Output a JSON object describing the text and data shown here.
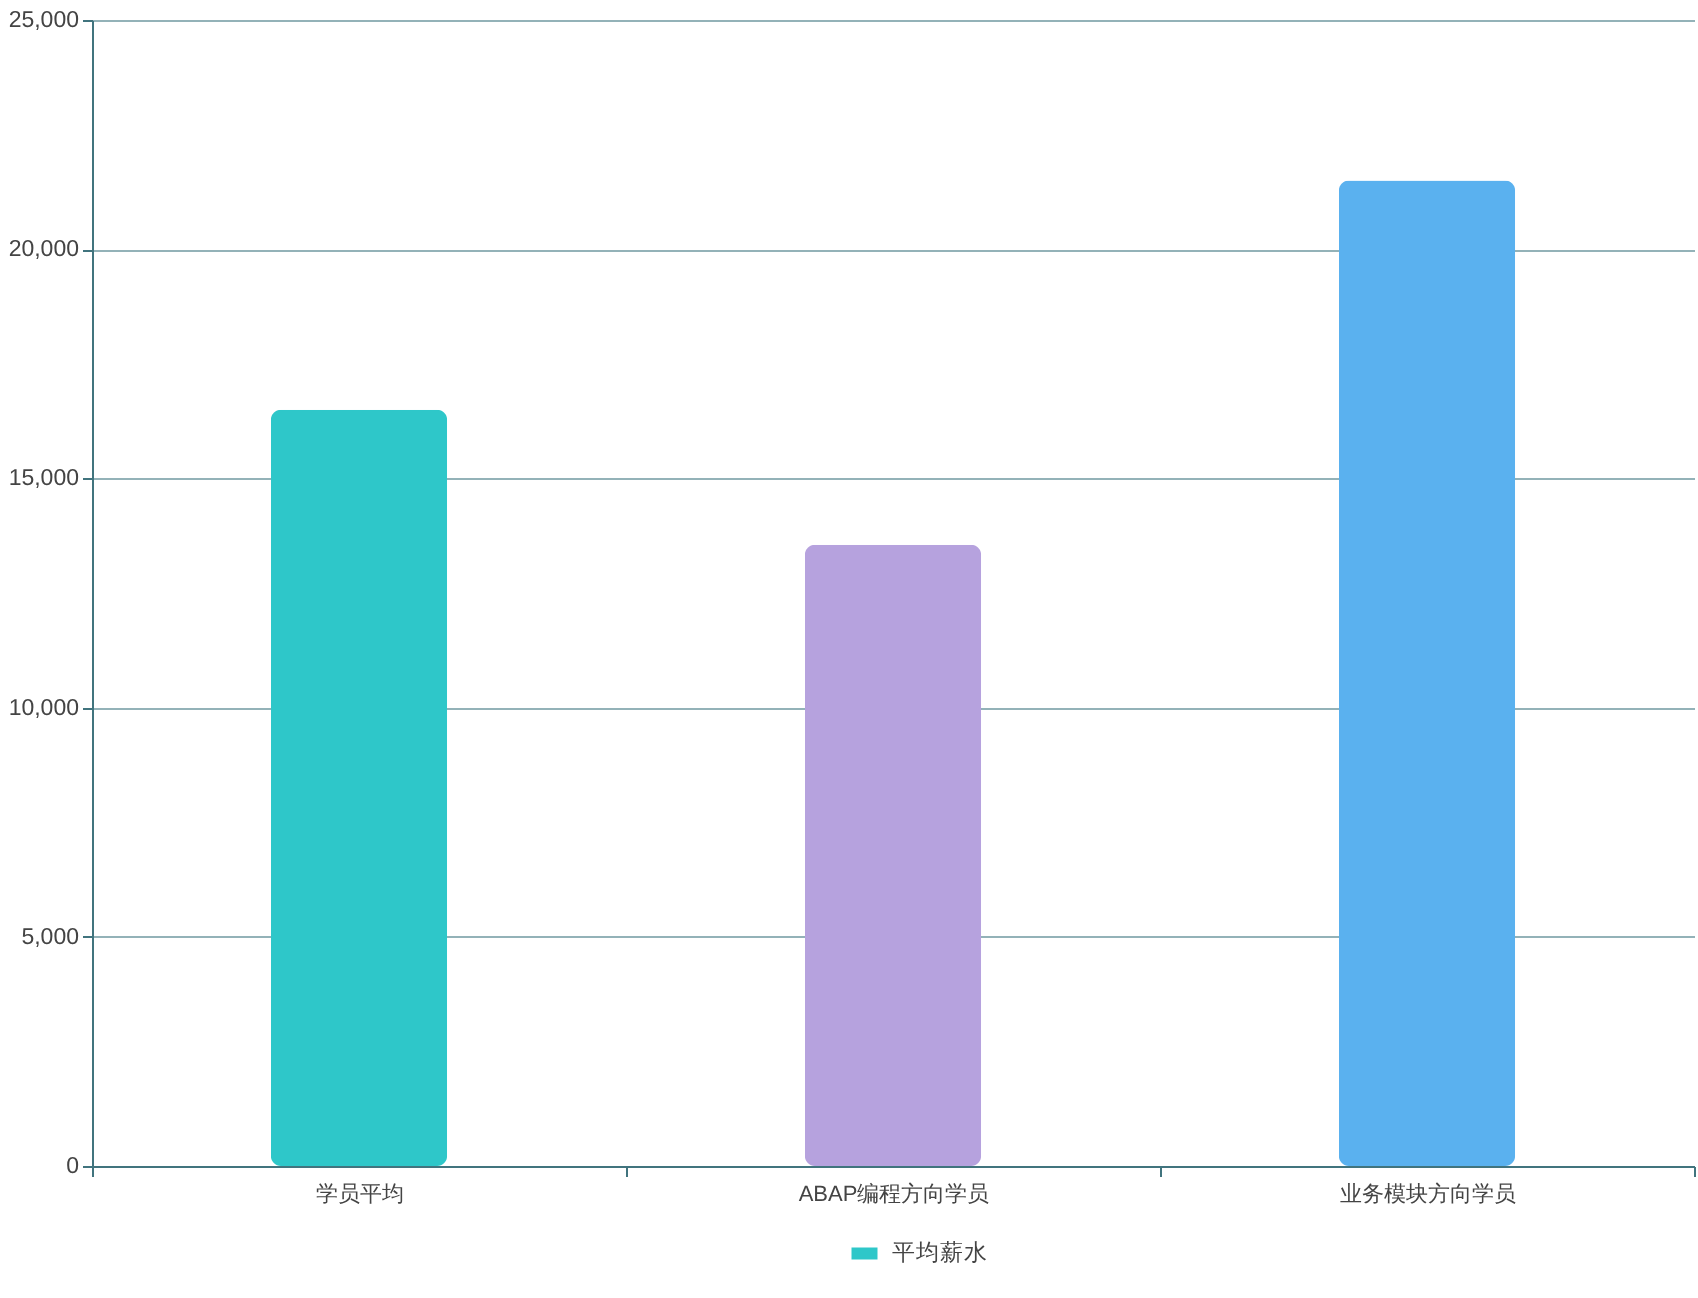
{
  "chart_data": {
    "type": "bar",
    "categories": [
      "学员平均",
      "ABAP编程方向学员",
      "业务模块方向学员"
    ],
    "series": [
      {
        "name": "平均薪水",
        "color": "#2ec7c9",
        "colors": [
          "#2ec7c9",
          "#b6a2de",
          "#5ab1ef"
        ],
        "values": [
          16500,
          13550,
          21500
        ]
      }
    ],
    "ylim": [
      0,
      25000
    ],
    "yticks": [
      {
        "value": 0,
        "label": "0"
      },
      {
        "value": 5000,
        "label": "5,000"
      },
      {
        "value": 10000,
        "label": "10,000"
      },
      {
        "value": 15000,
        "label": "15,000"
      },
      {
        "value": 20000,
        "label": "20,000"
      },
      {
        "value": 25000,
        "label": "25,000"
      }
    ],
    "grid": "y",
    "legend": "bottom"
  }
}
